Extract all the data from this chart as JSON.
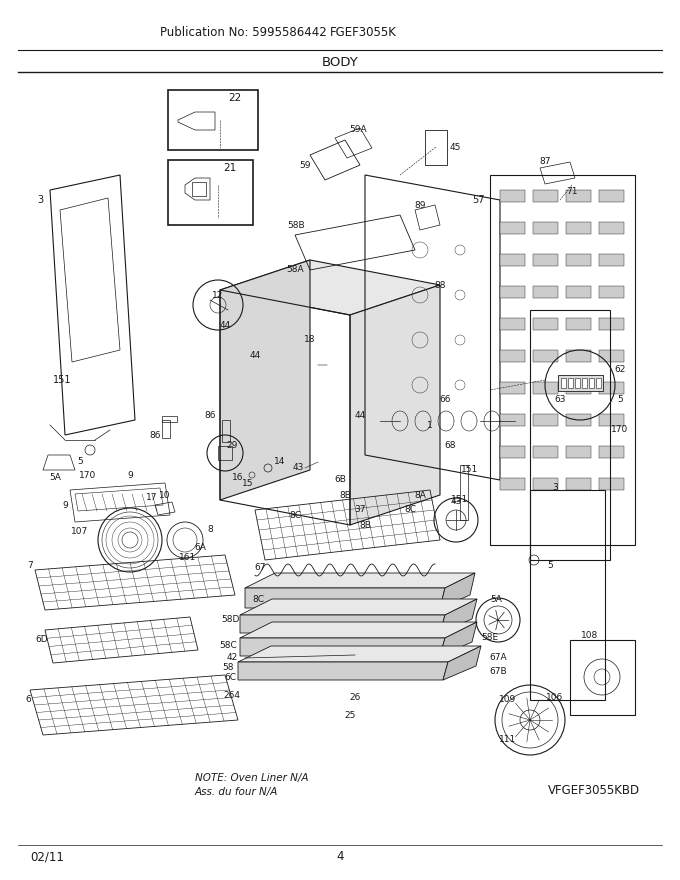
{
  "pub_no": "Publication No: 5995586442",
  "model": "FGEF3055K",
  "section": "BODY",
  "diagram_model": "VFGEF3055KBD",
  "date": "02/11",
  "page": "4",
  "note_line1": "NOTE: Oven Liner N/A",
  "note_line2": "Ass. du four N/A",
  "bg_color": "#ffffff",
  "line_color": "#1a1a1a",
  "text_color": "#1a1a1a",
  "header_fontsize": 8.5,
  "title_fontsize": 9.5,
  "footer_fontsize": 8.5
}
